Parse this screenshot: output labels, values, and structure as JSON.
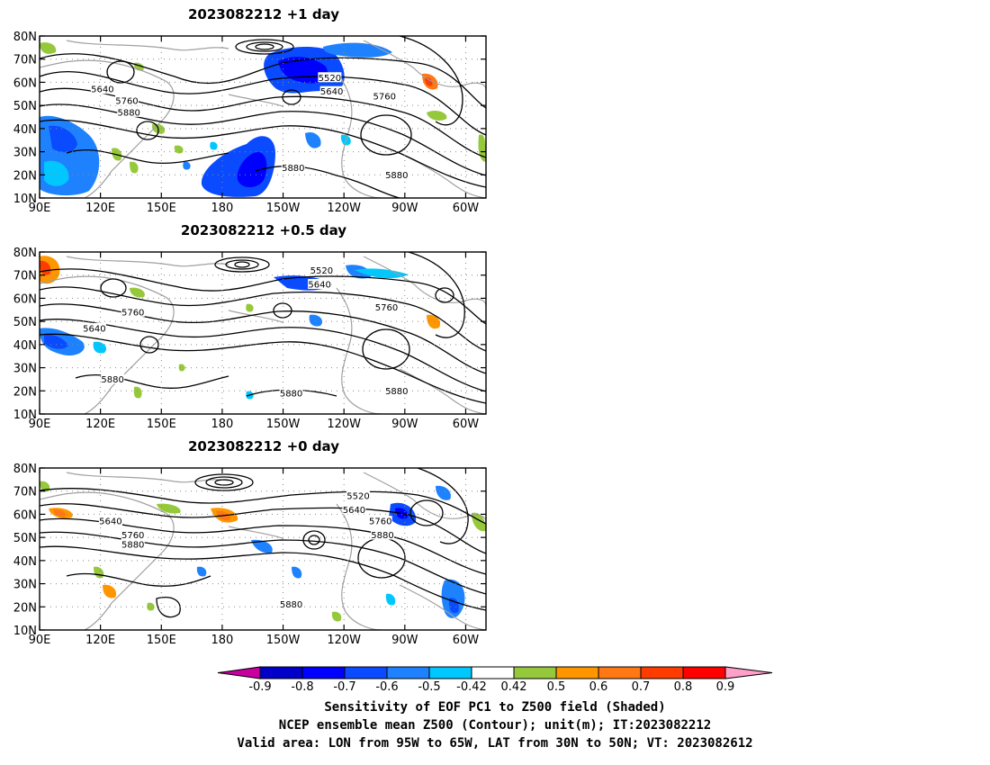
{
  "panels": [
    {
      "title": "2023082212 +1 day",
      "contour_labels": [
        {
          "text": "5520",
          "lon": 233,
          "lat": 62
        },
        {
          "text": "5640",
          "lon": 234,
          "lat": 56
        },
        {
          "text": "5640",
          "lon": 121,
          "lat": 57
        },
        {
          "text": "5760",
          "lon": 133,
          "lat": 52
        },
        {
          "text": "5880",
          "lon": 134,
          "lat": 47
        },
        {
          "text": "5760",
          "lon": 260,
          "lat": 54
        },
        {
          "text": "5880",
          "lon": 215,
          "lat": 23
        },
        {
          "text": "5880",
          "lon": 266,
          "lat": 20
        }
      ]
    },
    {
      "title": "2023082212 +0.5 day",
      "contour_labels": [
        {
          "text": "5520",
          "lon": 229,
          "lat": 72
        },
        {
          "text": "5640",
          "lon": 228,
          "lat": 66
        },
        {
          "text": "5760",
          "lon": 136,
          "lat": 54
        },
        {
          "text": "5640",
          "lon": 117,
          "lat": 47
        },
        {
          "text": "5760",
          "lon": 261,
          "lat": 56
        },
        {
          "text": "5880",
          "lon": 126,
          "lat": 25
        },
        {
          "text": "5880",
          "lon": 214,
          "lat": 19
        },
        {
          "text": "5880",
          "lon": 266,
          "lat": 20
        }
      ]
    },
    {
      "title": "2023082212 +0 day",
      "contour_labels": [
        {
          "text": "5520",
          "lon": 247,
          "lat": 68
        },
        {
          "text": "5640",
          "lon": 245,
          "lat": 62
        },
        {
          "text": "5640",
          "lon": 125,
          "lat": 57
        },
        {
          "text": "5760",
          "lon": 136,
          "lat": 51
        },
        {
          "text": "5880",
          "lon": 136,
          "lat": 47
        },
        {
          "text": "5760",
          "lon": 258,
          "lat": 57
        },
        {
          "text": "5880",
          "lon": 259,
          "lat": 51
        },
        {
          "text": "5880",
          "lon": 214,
          "lat": 21
        }
      ]
    }
  ],
  "y_ticks": [
    "80N",
    "70N",
    "60N",
    "50N",
    "40N",
    "30N",
    "20N",
    "10N"
  ],
  "x_ticks": [
    "90E",
    "120E",
    "150E",
    "180",
    "150W",
    "120W",
    "90W",
    "60W"
  ],
  "colorbar": {
    "ticks": [
      "-0.9",
      "-0.8",
      "-0.7",
      "-0.6",
      "-0.5",
      "-0.42",
      "0.42",
      "0.5",
      "0.6",
      "0.7",
      "0.8",
      "0.9"
    ],
    "colors": [
      "#0000c8",
      "#0000ff",
      "#0a4bff",
      "#1e82ff",
      "#00c8ff",
      "#ffffff",
      "#96c83c",
      "#ff9600",
      "#ff7814",
      "#ff3c00",
      "#ff0000"
    ],
    "low_end_color": "#c800a0",
    "high_end_color": "#ffa0c8"
  },
  "captions": [
    "Sensitivity of EOF PC1 to Z500 field (Shaded)",
    "NCEP ensemble mean Z500 (Contour); unit(m); IT:2023082212",
    "Valid area: LON from 95W to 65W, LAT from 30N to 50N; VT: 2023082612"
  ],
  "map": {
    "lon_min": 90,
    "lon_max": 310,
    "lat_min": 10,
    "lat_max": 80,
    "contour_color": "#000000",
    "coast_color": "#a0a0a0"
  }
}
